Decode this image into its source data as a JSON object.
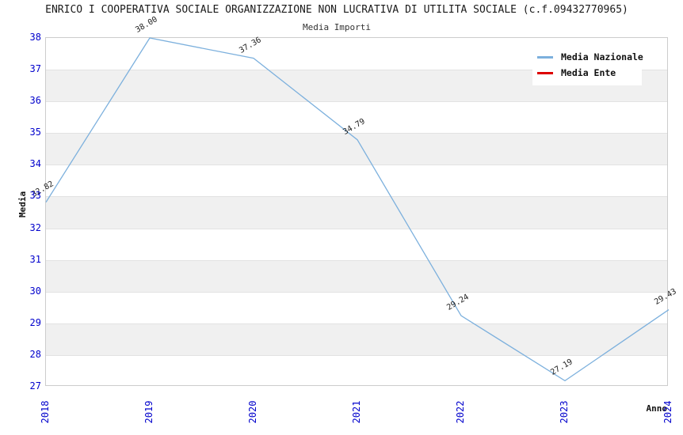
{
  "title": "ENRICO I COOPERATIVA SOCIALE ORGANIZZAZIONE NON LUCRATIVA DI UTILITA SOCIALE (c.f.09432770965)",
  "subtitle": "Media Importi",
  "legend": {
    "items": [
      {
        "label": "Media Nazionale",
        "color": "#7cb0dd"
      },
      {
        "label": "Media Ente",
        "color": "#dd0000"
      }
    ]
  },
  "colors": {
    "tick_text": "#0000cc",
    "line_nazionale": "#7cb0dd",
    "line_ente": "#dd0000",
    "band_gray": "#f0f0f0",
    "plot_border": "#cccccc"
  },
  "chart_data": {
    "type": "line",
    "title": "Media Importi",
    "xlabel": "Anno",
    "ylabel": "Media",
    "x": [
      2018,
      2019,
      2020,
      2021,
      2022,
      2023,
      2024
    ],
    "xtick_labels": [
      "2018",
      "2019",
      "2020",
      "2021",
      "2022",
      "2023",
      "2024"
    ],
    "yticks": [
      27,
      28,
      29,
      30,
      31,
      32,
      33,
      34,
      35,
      36,
      37,
      38
    ],
    "ylim": [
      27,
      38
    ],
    "grid": "alternating-horizontal-bands",
    "legend_position": "top-right",
    "series": [
      {
        "name": "Media Nazionale",
        "color": "#7cb0dd",
        "values": [
          32.82,
          38.0,
          37.36,
          34.79,
          29.24,
          27.19,
          29.43
        ],
        "point_labels": [
          "32.82",
          "38.00",
          "37.36",
          "34.79",
          "29.24",
          "27.19",
          "29.43"
        ]
      },
      {
        "name": "Media Ente",
        "color": "#dd0000",
        "values": [],
        "point_labels": []
      }
    ]
  }
}
